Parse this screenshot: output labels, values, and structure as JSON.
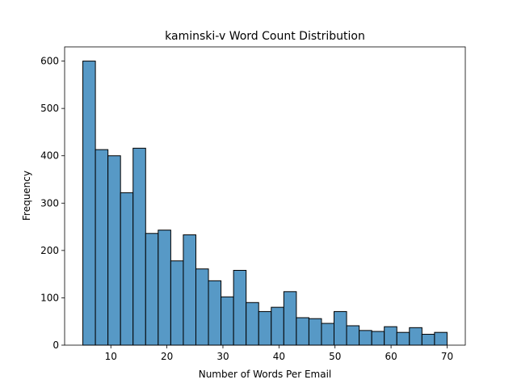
{
  "chart_data": {
    "type": "histogram",
    "title": "kaminski-v Word Count Distribution",
    "x_label": "Number of Words Per Email",
    "y_label": "Frequency",
    "bins": [
      5,
      7.241,
      9.483,
      11.724,
      13.966,
      16.207,
      18.448,
      20.69,
      22.931,
      25.172,
      27.414,
      29.655,
      31.897,
      34.138,
      36.379,
      38.621,
      40.862,
      43.103,
      45.345,
      47.586,
      49.828,
      52.069,
      54.31,
      56.552,
      58.793,
      61.034,
      63.276,
      65.517,
      67.759,
      70
    ],
    "counts": [
      600,
      413,
      400,
      322,
      416,
      236,
      243,
      178,
      233,
      161,
      136,
      102,
      158,
      90,
      71,
      80,
      113,
      58,
      56,
      46,
      71,
      41,
      31,
      29,
      39,
      27,
      37,
      23,
      27
    ],
    "color": "#5799c6",
    "xlim": [
      1.75,
      73.25
    ],
    "xticks": [
      10,
      20,
      30,
      40,
      50,
      60,
      70
    ],
    "ylim": [
      0,
      630
    ],
    "yticks": [
      0,
      100,
      200,
      300,
      400,
      500,
      600
    ]
  }
}
